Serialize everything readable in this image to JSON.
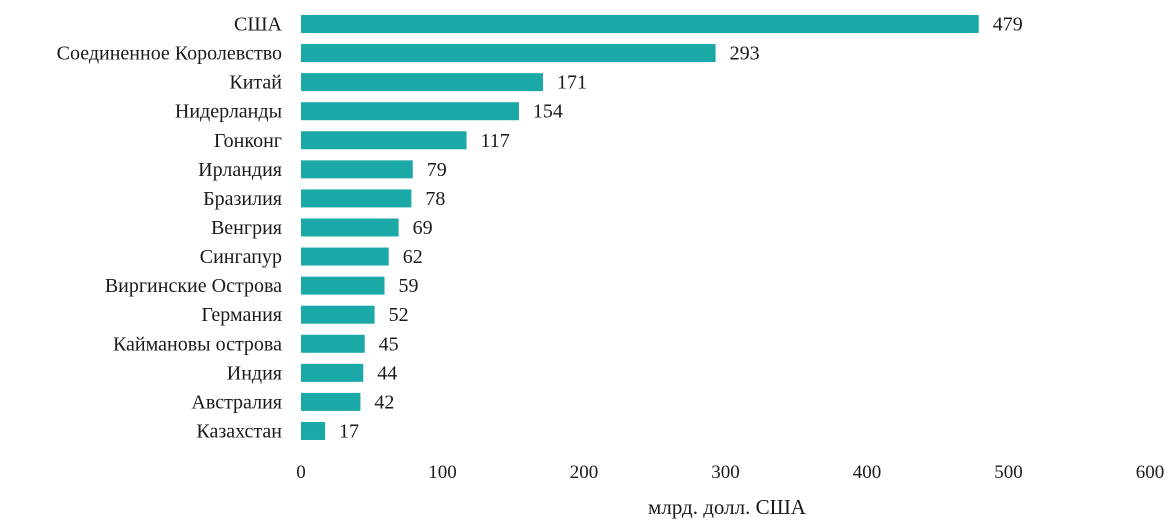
{
  "chart_data": {
    "type": "bar",
    "orientation": "horizontal",
    "categories": [
      "США",
      "Соединенное Королевство",
      "Китай",
      "Нидерланды",
      "Гонконг",
      "Ирландия",
      "Бразилия",
      "Венгрия",
      "Сингапур",
      "Виргинские Острова",
      "Германия",
      "Каймановы острова",
      "Индия",
      "Австралия",
      "Казахстан"
    ],
    "values": [
      479,
      293,
      171,
      154,
      117,
      79,
      78,
      69,
      62,
      59,
      52,
      45,
      44,
      42,
      17
    ],
    "xlabel": "млрд. долл. США",
    "ylabel": "",
    "xlim": [
      0,
      600
    ],
    "xticks": [
      0,
      100,
      200,
      300,
      400,
      500,
      600
    ],
    "grid": false,
    "bar_color": "#1aa9a7",
    "data_labels": true
  }
}
